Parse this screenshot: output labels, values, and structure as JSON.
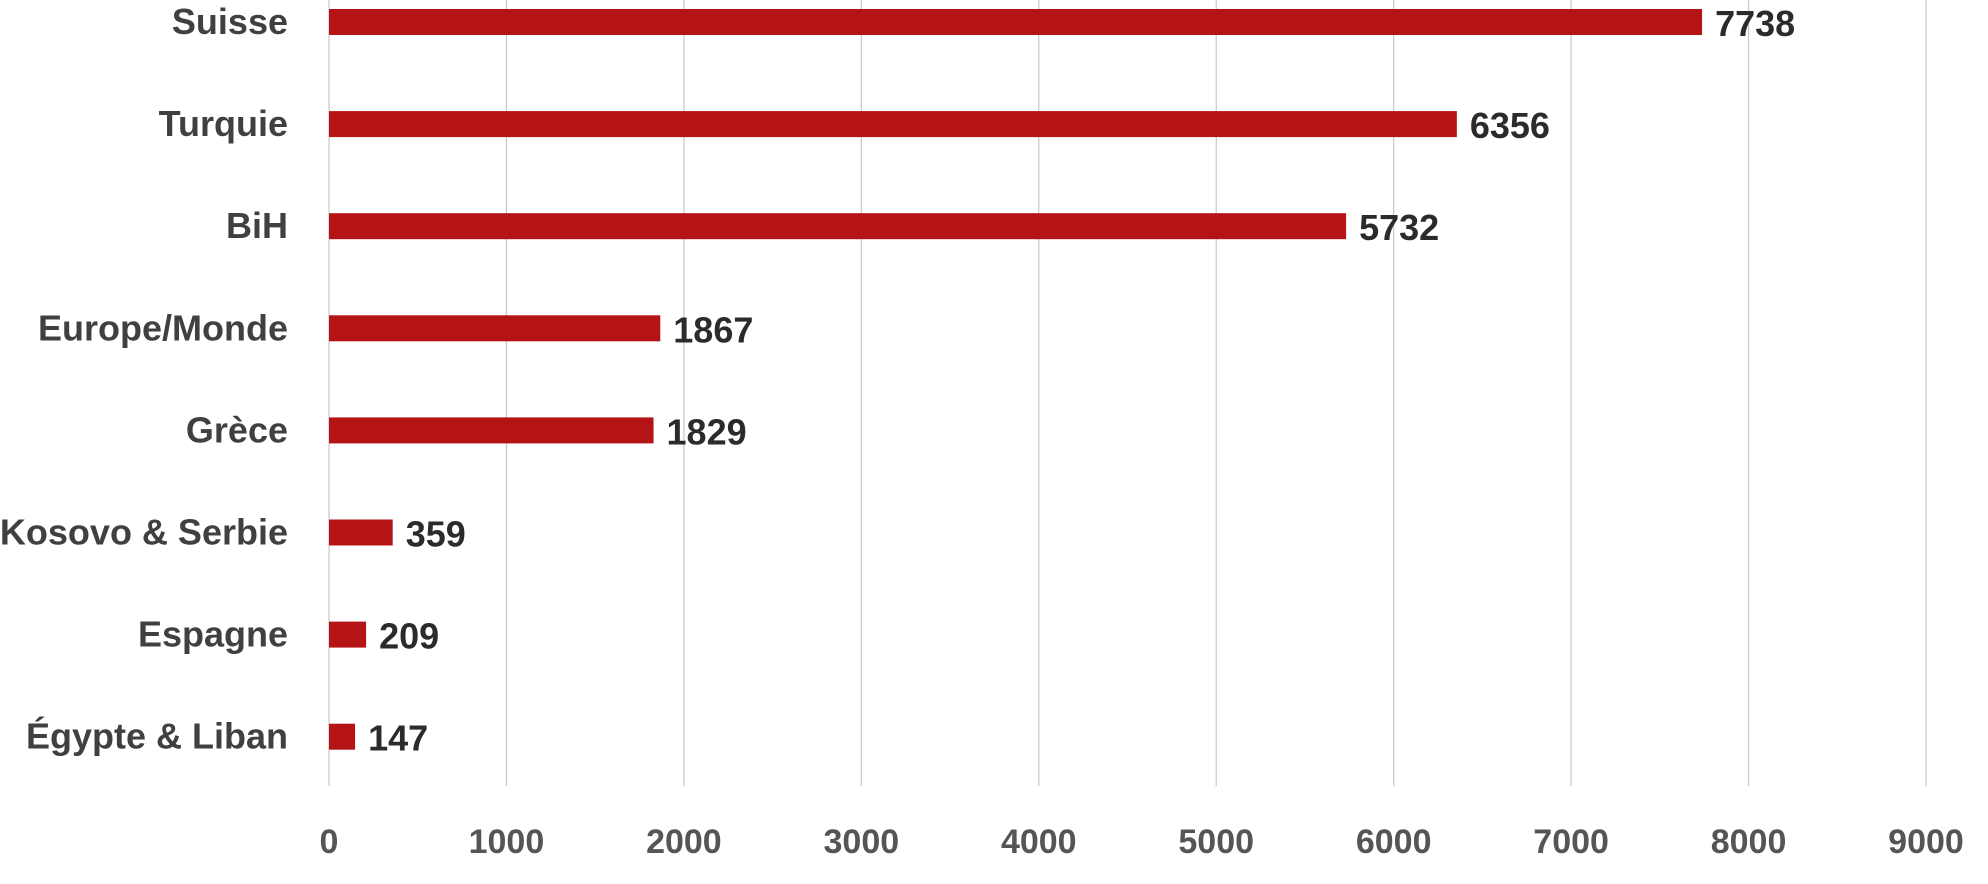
{
  "chart_data": {
    "type": "bar",
    "orientation": "horizontal",
    "categories": [
      "Suisse",
      "Turquie",
      "BiH",
      "Europe/Monde",
      "Grèce",
      "Kosovo & Serbie",
      "Espagne",
      "Égypte & Liban"
    ],
    "values": [
      7738,
      6356,
      5732,
      1867,
      1829,
      359,
      209,
      147
    ],
    "data_labels": [
      "7738",
      "6356",
      "5732",
      "1867",
      "1829",
      "359",
      "209",
      "147"
    ],
    "xlim": [
      0,
      9000
    ],
    "x_ticks": [
      "0",
      "1000",
      "2000",
      "3000",
      "4000",
      "5000",
      "6000",
      "7000",
      "8000",
      "9000"
    ],
    "grid": "vertical",
    "legend": "none",
    "bar_color": "#b51417"
  }
}
